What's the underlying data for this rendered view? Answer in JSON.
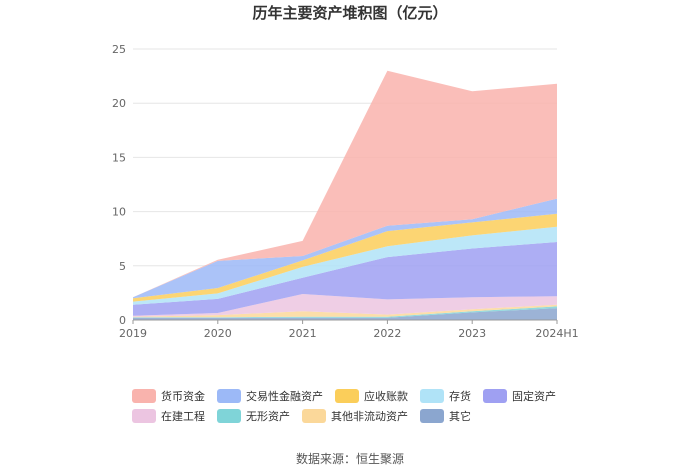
{
  "chart_data": {
    "type": "area",
    "stacked": true,
    "title": "历年主要资产堆积图（亿元）",
    "categories": [
      "2019",
      "2020",
      "2021",
      "2022",
      "2023",
      "2024H1"
    ],
    "yticks": [
      "0",
      "5",
      "10",
      "15",
      "20",
      "25"
    ],
    "ylim": [
      0,
      25
    ],
    "series": [
      {
        "name": "其它",
        "color": "#8ba6cf",
        "values": [
          0.2,
          0.2,
          0.2,
          0.2,
          0.7,
          1.1
        ]
      },
      {
        "name": "无形资产",
        "color": "#7fd4d8",
        "values": [
          0.05,
          0.05,
          0.1,
          0.1,
          0.1,
          0.15
        ]
      },
      {
        "name": "其他非流动资产",
        "color": "#fbd89a",
        "values": [
          0.05,
          0.2,
          0.5,
          0.2,
          0.2,
          0.15
        ]
      },
      {
        "name": "在建工程",
        "color": "#ecc5e1",
        "values": [
          0.1,
          0.2,
          1.6,
          1.4,
          1.1,
          0.8
        ]
      },
      {
        "name": "固定资产",
        "color": "#9fa0f2",
        "values": [
          1.0,
          1.3,
          1.5,
          3.9,
          4.5,
          5.0
        ]
      },
      {
        "name": "存货",
        "color": "#b0e3f7",
        "values": [
          0.3,
          0.5,
          1.0,
          1.0,
          1.2,
          1.4
        ]
      },
      {
        "name": "应收账款",
        "color": "#fbce5a",
        "values": [
          0.3,
          0.5,
          0.6,
          1.4,
          1.2,
          1.2
        ]
      },
      {
        "name": "交易性金融资产",
        "color": "#9cb9f7",
        "values": [
          0.1,
          2.5,
          0.4,
          0.5,
          0.3,
          1.4
        ]
      },
      {
        "name": "货币资金",
        "color": "#f9b3ad",
        "values": [
          0.0,
          0.1,
          1.4,
          14.3,
          11.8,
          10.6
        ]
      }
    ]
  },
  "legend_order": [
    "货币资金",
    "交易性金融资产",
    "应收账款",
    "存货",
    "固定资产",
    "在建工程",
    "无形资产",
    "其他非流动资产",
    "其它"
  ],
  "source": "数据来源：恒生聚源"
}
